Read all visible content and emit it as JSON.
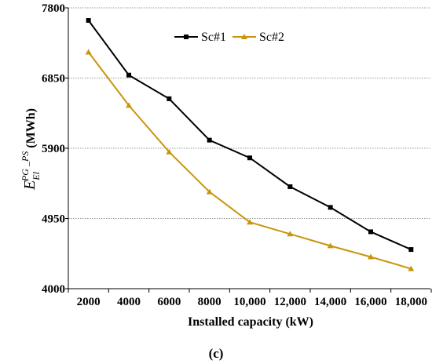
{
  "chart_data": {
    "type": "line",
    "x": [
      2000,
      4000,
      6000,
      8000,
      10000,
      12000,
      14000,
      16000,
      18000
    ],
    "x_tick_labels": [
      "2000",
      "4000",
      "6000",
      "8000",
      "10,000",
      "12,000",
      "14,000",
      "16,000",
      "18,000"
    ],
    "xlabel": "Installed capacity (kW)",
    "ylabel_base": "E",
    "ylabel_sub": "El",
    "ylabel_sup": "PG _PS",
    "ylabel_unit": "(MWh)",
    "ylim": [
      4000,
      7800
    ],
    "y_ticks": [
      4000,
      4950,
      5900,
      6850,
      7800
    ],
    "grid": "horizontal",
    "legend_position": "top-center",
    "caption": "(c)",
    "series": [
      {
        "name": "Sc#1",
        "color": "#000000",
        "marker": "square",
        "values": [
          7630,
          6890,
          6570,
          6010,
          5770,
          5380,
          5100,
          4770,
          4530
        ]
      },
      {
        "name": "Sc#2",
        "color": "#c8960c",
        "marker": "triangle",
        "values": [
          7200,
          6480,
          5850,
          5310,
          4900,
          4740,
          4580,
          4430,
          4270
        ]
      }
    ]
  }
}
